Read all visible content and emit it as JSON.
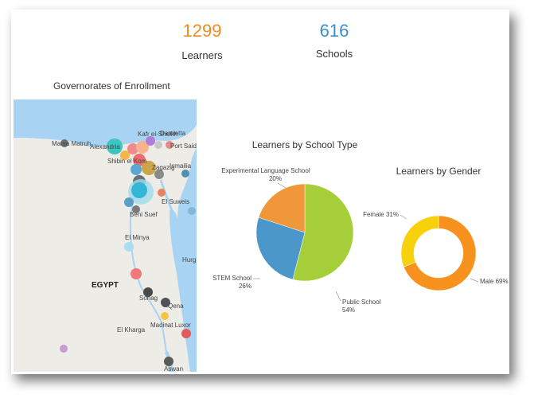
{
  "kpis": {
    "learners": {
      "value": "1299",
      "label": "Learners",
      "color": "#f08a24"
    },
    "schools": {
      "value": "616",
      "label": "Schools",
      "color": "#3a8fc8"
    }
  },
  "map": {
    "title": "Governorates of Enrollment",
    "country_label": "EGYPT",
    "place_labels": [
      "Marsa Matruh",
      "Alexandria",
      "Kafr el-Sheikh",
      "Damietta",
      "Port Said",
      "Shibin el Kom",
      "Zagazig",
      "Ismailia",
      "El Suweis",
      "Beni Suef",
      "El Minya",
      "Hurghada",
      "Sohag",
      "Qena",
      "Madinat Luxor",
      "El Kharga",
      "Aswan"
    ],
    "water_color": "#a9d3f2",
    "land_color": "#eeece7"
  },
  "chart_data": [
    {
      "type": "pie",
      "title": "Learners by School Type",
      "labels": [
        "Public School",
        "STEM School",
        "Experimental Language School"
      ],
      "values": [
        54,
        26,
        20
      ],
      "value_labels": [
        "54%",
        "26%",
        "20%"
      ],
      "colors": [
        "#a6ce39",
        "#4c97c9",
        "#f0973a"
      ]
    },
    {
      "type": "pie",
      "donut": true,
      "title": "Learners by Gender",
      "labels": [
        "Male",
        "Female"
      ],
      "values": [
        69,
        31
      ],
      "value_labels": [
        "69%",
        "31%"
      ],
      "colors": [
        "#f7921e",
        "#f7d10a"
      ]
    }
  ]
}
